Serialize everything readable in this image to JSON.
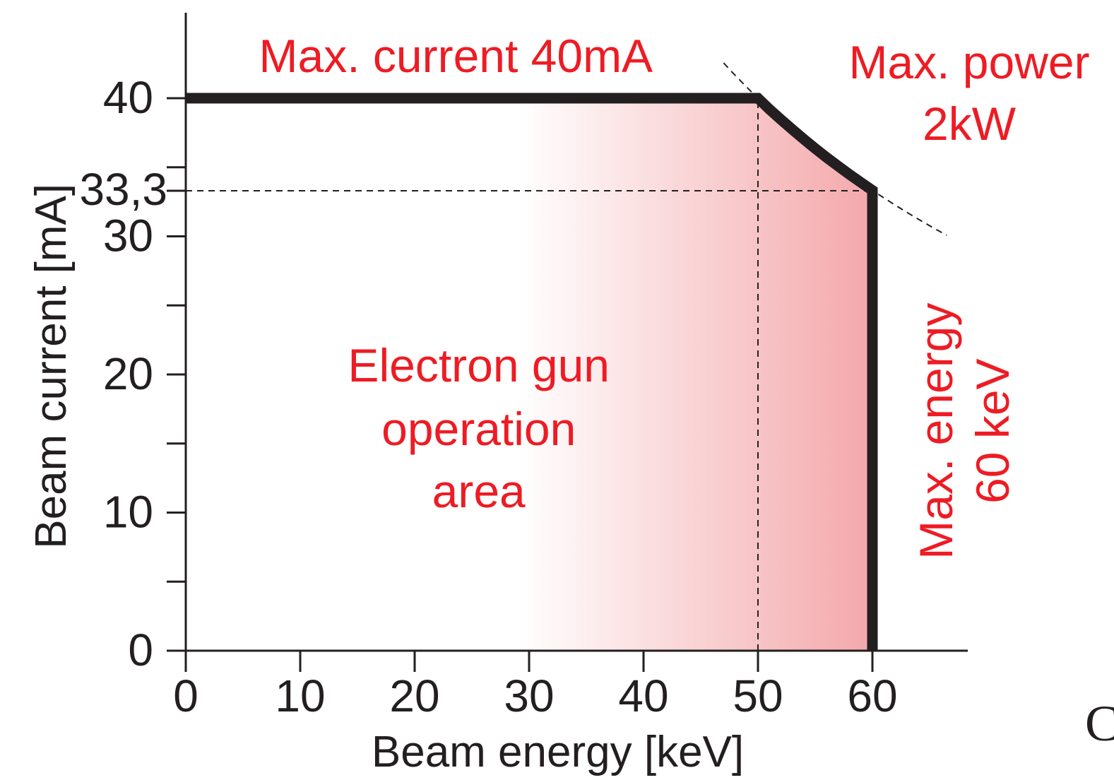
{
  "chart_data": {
    "type": "area",
    "title": "",
    "xlabel": "Beam energy [keV]",
    "ylabel": "Beam current [mA]",
    "xlim": [
      0,
      68
    ],
    "ylim": [
      0,
      46
    ],
    "x_ticks": [
      0,
      10,
      20,
      30,
      40,
      50,
      60
    ],
    "x_tick_labels": [
      "0",
      "10",
      "20",
      "30",
      "40",
      "50",
      "60"
    ],
    "x_minor_ticks": [],
    "y_ticks": [
      0,
      10,
      20,
      30,
      40
    ],
    "y_tick_labels": [
      "0",
      "10",
      "20",
      "30",
      "40"
    ],
    "y_minor_ticks": [
      5,
      15,
      25,
      35
    ],
    "extra_y_label": {
      "value": 33.3,
      "text": "33,3"
    },
    "grid": false,
    "series": [
      {
        "values": [
          [
            0,
            40
          ],
          [
            50,
            40
          ],
          [
            51,
            39.2
          ],
          [
            52,
            38.46
          ],
          [
            53,
            37.74
          ],
          [
            54,
            37.04
          ],
          [
            55,
            36.36
          ],
          [
            56,
            35.71
          ],
          [
            57,
            35.09
          ],
          [
            58,
            34.48
          ],
          [
            59,
            33.9
          ],
          [
            60,
            33.33
          ],
          [
            60,
            0
          ]
        ]
      }
    ],
    "power_curve": {
      "power_kw": 2,
      "x_range": [
        47,
        66.5
      ]
    },
    "reference_lines": [
      {
        "orientation": "horizontal",
        "value": 33.3,
        "x_range": [
          0,
          60
        ]
      },
      {
        "orientation": "vertical",
        "value": 50,
        "y_range": [
          0,
          40
        ]
      }
    ],
    "fill": {
      "x_start": 29,
      "x_end": 60,
      "color_start": "#ffffff",
      "color_end": "#f4a8ab"
    },
    "annotations": {
      "max_current": "Max. current 40mA",
      "max_power_line1": "Max. power",
      "max_power_line2": "2kW",
      "max_energy_line1": "Max. energy",
      "max_energy_line2": "60 keV",
      "area_line1": "Electron gun",
      "area_line2": "operation",
      "area_line3": "area"
    },
    "edge_fragment": "C",
    "colors": {
      "boundary": "#231f20",
      "annotation": "#ed1c24",
      "axis": "#231f20"
    }
  }
}
